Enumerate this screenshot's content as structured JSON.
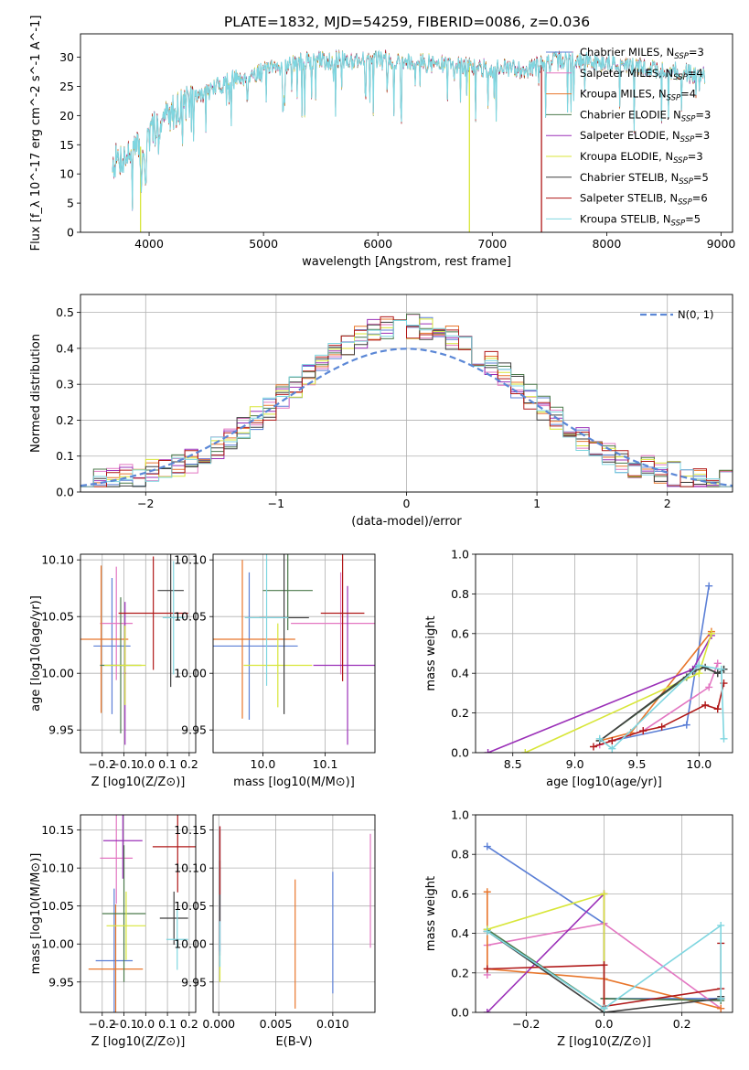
{
  "figure": {
    "title": "PLATE=1832, MJD=54259, FIBERID=0086, z=0.036"
  },
  "colors": [
    "#5b7fd6",
    "#e377c2",
    "#e8762c",
    "#4c7a4c",
    "#9b30b8",
    "#d8e63a",
    "#3f3f3f",
    "#b01818",
    "#7fd6e0"
  ],
  "chart_data": [
    {
      "id": "spectrum",
      "type": "line",
      "xlabel": "wavelength [Angstrom, rest frame]",
      "ylabel": "Flux [f_λ 10^-17 erg cm^-2 s^-1 A^-1]",
      "xlim": [
        3400,
        9100
      ],
      "ylim": [
        0,
        34
      ],
      "xticks": [
        4000,
        5000,
        6000,
        7000,
        8000,
        9000
      ],
      "yticks": [
        0,
        5,
        10,
        15,
        20,
        25,
        30
      ],
      "grid": false,
      "legend_position": "top-right",
      "legend": [
        "Chabrier MILES, N_SSP=3",
        "Salpeter MILES, N_SSP=4",
        "Kroupa MILES, N_SSP=4",
        "Chabrier ELODIE, N_SSP=3",
        "Salpeter ELODIE, N_SSP=3",
        "Kroupa ELODIE, N_SSP=3",
        "Chabrier STELIB, N_SSP=5",
        "Salpeter STELIB, N_SSP=6",
        "Kroupa STELIB, N_SSP=5"
      ],
      "envelope": {
        "x": [
          3680,
          3800,
          3950,
          4100,
          4300,
          4500,
          4700,
          4900,
          5100,
          5300,
          5500,
          5800,
          6100,
          6400,
          6700,
          7000,
          7300,
          7600,
          8000,
          8400,
          8800
        ],
        "y": [
          12,
          13,
          15,
          19,
          22,
          24,
          26,
          27,
          28,
          29,
          29.5,
          29.5,
          29.5,
          29,
          28.5,
          28,
          28,
          29.5,
          29,
          28,
          27
        ]
      },
      "cutoffs": [
        {
          "series": "Kroupa ELODIE, N_SSP=3",
          "x": 3925
        },
        {
          "series": "Kroupa ELODIE, N_SSP=3",
          "x": 6800
        },
        {
          "series": "Salpeter STELIB, N_SSP=6",
          "x": 7430
        }
      ]
    },
    {
      "id": "residuals",
      "type": "line",
      "xlabel": "(data-model)/error",
      "ylabel": "Normed distribution",
      "xlim": [
        -2.5,
        2.5
      ],
      "ylim": [
        0,
        0.55
      ],
      "xticks": [
        -2,
        -1,
        0,
        1,
        2
      ],
      "yticks": [
        0.0,
        0.1,
        0.2,
        0.3,
        0.4,
        0.5
      ],
      "grid": true,
      "legend_position": "top-right",
      "reference_label": "N(0, 1)",
      "reference": {
        "mean": 0,
        "sigma": 1
      }
    },
    {
      "id": "age-vs-Z",
      "type": "scatter",
      "xlabel": "Z [log10(Z/Z⊙)]",
      "ylabel": "age  [log10(age/yr)]",
      "xlim": [
        -0.3,
        0.23
      ],
      "ylim": [
        9.93,
        10.105
      ],
      "xticks": [
        -0.2,
        -0.1,
        0.0,
        0.1,
        0.2
      ],
      "yticks": [
        9.95,
        10.0,
        10.05,
        10.1
      ],
      "grid": true,
      "points": [
        {
          "x": -0.155,
          "y": 10.024,
          "xerr": 0.085,
          "yerr": 0.06
        },
        {
          "x": -0.135,
          "y": 10.044,
          "xerr": 0.075,
          "yerr": 0.05
        },
        {
          "x": -0.205,
          "y": 10.03,
          "xerr": 0.125,
          "yerr": 0.065
        },
        {
          "x": -0.115,
          "y": 10.007,
          "xerr": 0.095,
          "yerr": 0.06
        },
        {
          "x": -0.095,
          "y": 10.0,
          "xerr": 0.005,
          "yerr": 0.063
        },
        {
          "x": -0.095,
          "y": 10.007,
          "xerr": 0.095,
          "yerr": 0.035
        },
        {
          "x": 0.115,
          "y": 10.073,
          "xerr": 0.06,
          "yerr": 0.085
        },
        {
          "x": 0.035,
          "y": 10.053,
          "xerr": 0.16,
          "yerr": 0.05
        },
        {
          "x": 0.128,
          "y": 10.049,
          "xerr": 0.05,
          "yerr": 0.05
        }
      ]
    },
    {
      "id": "age-vs-mass",
      "type": "scatter",
      "xlabel": "mass [log10(M/M⊙)]",
      "ylabel": "",
      "xlim": [
        9.92,
        10.18
      ],
      "ylim": [
        9.93,
        10.105
      ],
      "xticks": [
        10.0,
        10.1
      ],
      "yticks": [
        9.95,
        10.0,
        10.05,
        10.1
      ],
      "grid": true,
      "points": [
        {
          "x": 9.978,
          "y": 10.024,
          "xerr": 0.078,
          "yerr": 0.065
        },
        {
          "x": 10.125,
          "y": 10.044,
          "xerr": 0.08,
          "yerr": 0.045
        },
        {
          "x": 9.967,
          "y": 10.03,
          "xerr": 0.085,
          "yerr": 0.07
        },
        {
          "x": 10.04,
          "y": 10.073,
          "xerr": 0.04,
          "yerr": 0.035
        },
        {
          "x": 10.136,
          "y": 10.007,
          "xerr": 0.055,
          "yerr": 0.07
        },
        {
          "x": 10.024,
          "y": 10.007,
          "xerr": 0.055,
          "yerr": 0.037
        },
        {
          "x": 10.034,
          "y": 10.049,
          "xerr": 0.04,
          "yerr": 0.085
        },
        {
          "x": 10.128,
          "y": 10.053,
          "xerr": 0.035,
          "yerr": 0.06
        },
        {
          "x": 10.006,
          "y": 10.049,
          "xerr": 0.035,
          "yerr": 0.06
        }
      ]
    },
    {
      "id": "weight-vs-age",
      "type": "line",
      "xlabel": "age  [log10(age/yr)]",
      "ylabel": "mass weight",
      "xlim": [
        8.2,
        10.27
      ],
      "ylim": [
        0,
        1.0
      ],
      "xticks": [
        8.5,
        9.0,
        9.5,
        10.0
      ],
      "yticks": [
        0.0,
        0.2,
        0.4,
        0.6,
        0.8,
        1.0
      ],
      "grid": true,
      "series": [
        {
          "x": [
            9.3,
            9.9,
            10.08
          ],
          "y": [
            0.06,
            0.14,
            0.84
          ]
        },
        {
          "x": [
            9.2,
            9.55,
            10.08,
            10.15
          ],
          "y": [
            0.04,
            0.11,
            0.33,
            0.45
          ]
        },
        {
          "x": [
            9.2,
            9.45,
            10.1
          ],
          "y": [
            0.06,
            0.1,
            0.61
          ]
        },
        {
          "x": [
            9.2,
            9.9,
            10.0,
            10.15,
            10.2
          ],
          "y": [
            0.06,
            0.38,
            0.44,
            0.4,
            0.42
          ]
        },
        {
          "x": [
            8.3,
            9.95,
            10.1
          ],
          "y": [
            0.0,
            0.42,
            0.59
          ]
        },
        {
          "x": [
            8.6,
            10.0,
            10.1
          ],
          "y": [
            0.0,
            0.4,
            0.6
          ]
        },
        {
          "x": [
            9.2,
            9.95,
            10.05,
            10.15,
            10.2
          ],
          "y": [
            0.06,
            0.41,
            0.43,
            0.4,
            0.42
          ]
        },
        {
          "x": [
            9.15,
            9.3,
            9.55,
            9.7,
            10.05,
            10.15,
            10.2
          ],
          "y": [
            0.03,
            0.06,
            0.11,
            0.13,
            0.24,
            0.22,
            0.35
          ]
        },
        {
          "x": [
            9.2,
            9.3,
            10.0,
            10.18,
            10.2
          ],
          "y": [
            0.07,
            0.02,
            0.44,
            0.42,
            0.07
          ]
        }
      ]
    },
    {
      "id": "mass-vs-Z",
      "type": "scatter",
      "xlabel": "Z [log10(Z/Z⊙)]",
      "ylabel": "mass [log10(M/M⊙)]",
      "xlim": [
        -0.3,
        0.23
      ],
      "ylim": [
        9.91,
        10.17
      ],
      "xticks": [
        -0.2,
        -0.1,
        0.0,
        0.1,
        0.2
      ],
      "yticks": [
        9.95,
        10.0,
        10.05,
        10.1,
        10.15
      ],
      "grid": true,
      "points": [
        {
          "x": -0.145,
          "y": 9.978,
          "xerr": 0.085,
          "yerr": 0.095
        },
        {
          "x": -0.135,
          "y": 10.113,
          "xerr": 0.075,
          "yerr": 0.06
        },
        {
          "x": -0.138,
          "y": 9.967,
          "xerr": 0.125,
          "yerr": 0.085
        },
        {
          "x": -0.1,
          "y": 10.04,
          "xerr": 0.1,
          "yerr": 0.09
        },
        {
          "x": -0.105,
          "y": 10.136,
          "xerr": 0.09,
          "yerr": 0.05
        },
        {
          "x": -0.09,
          "y": 10.024,
          "xerr": 0.09,
          "yerr": 0.045
        },
        {
          "x": 0.13,
          "y": 10.034,
          "xerr": 0.065,
          "yerr": 0.035
        },
        {
          "x": 0.147,
          "y": 10.128,
          "xerr": 0.115,
          "yerr": 0.06
        },
        {
          "x": 0.145,
          "y": 10.006,
          "xerr": 0.05,
          "yerr": 0.04
        }
      ]
    },
    {
      "id": "mass-vs-EBV",
      "type": "scatter",
      "xlabel": "E(B-V)",
      "ylabel": "",
      "xlim": [
        -0.0005,
        0.0137
      ],
      "ylim": [
        9.91,
        10.17
      ],
      "xticks": [
        0.0,
        0.005,
        0.01
      ],
      "yticks": [
        9.95,
        10.0,
        10.05,
        10.1,
        10.15
      ],
      "grid": true,
      "points": [
        {
          "x": 0.01,
          "y": 10.015,
          "yerr": 0.08
        },
        {
          "x": 0.0133,
          "y": 10.07,
          "yerr": 0.075
        },
        {
          "x": 0.0067,
          "y": 10.0,
          "yerr": 0.085
        },
        {
          "x": 0.0001,
          "y": 10.07,
          "yerr": 0.08
        },
        {
          "x": 0.0001,
          "y": 10.07,
          "yerr": 0.085
        },
        {
          "x": 0.0001,
          "y": 9.97,
          "yerr": 0.02
        },
        {
          "x": 0.0001,
          "y": 10.07,
          "yerr": 0.04
        },
        {
          "x": 0.0001,
          "y": 10.11,
          "yerr": 0.045
        },
        {
          "x": 0.0001,
          "y": 10.0,
          "yerr": 0.03
        }
      ]
    },
    {
      "id": "weight-vs-Z",
      "type": "line",
      "xlabel": "Z [log10(Z/Z⊙)]",
      "ylabel": "mass weight",
      "xlim": [
        -0.33,
        0.33
      ],
      "ylim": [
        0,
        1.0
      ],
      "xticks": [
        -0.2,
        0.0,
        0.2
      ],
      "yticks": [
        0.0,
        0.2,
        0.4,
        0.6,
        0.8,
        1.0
      ],
      "grid": true,
      "series": [
        {
          "x": [
            -0.3,
            0.0,
            0.0,
            0.3
          ],
          "y": [
            0.84,
            0.45,
            0.07,
            0.07
          ]
        },
        {
          "x": [
            -0.3,
            -0.3,
            0.0,
            0.3
          ],
          "y": [
            0.19,
            0.34,
            0.45,
            0.02
          ]
        },
        {
          "x": [
            -0.3,
            -0.3,
            -0.3,
            0.0,
            0.3
          ],
          "y": [
            0.61,
            0.41,
            0.22,
            0.17,
            0.02
          ]
        },
        {
          "x": [
            -0.3,
            0.0,
            0.0,
            0.3
          ],
          "y": [
            0.42,
            0.02,
            0.07,
            0.06
          ]
        },
        {
          "x": [
            -0.3,
            0.0,
            0.0
          ],
          "y": [
            0.0,
            0.6,
            0.0
          ]
        },
        {
          "x": [
            -0.3,
            0.0,
            0.0
          ],
          "y": [
            0.42,
            0.6,
            0.0
          ]
        },
        {
          "x": [
            -0.3,
            0.0,
            0.3,
            0.3
          ],
          "y": [
            0.41,
            0.0,
            0.07,
            0.08
          ]
        },
        {
          "x": [
            -0.3,
            0.0,
            0.0,
            0.3,
            0.3
          ],
          "y": [
            0.22,
            0.24,
            0.03,
            0.12,
            0.35
          ]
        },
        {
          "x": [
            -0.3,
            0.0,
            0.3,
            0.3
          ],
          "y": [
            0.41,
            0.02,
            0.44,
            0.07
          ]
        }
      ]
    }
  ]
}
